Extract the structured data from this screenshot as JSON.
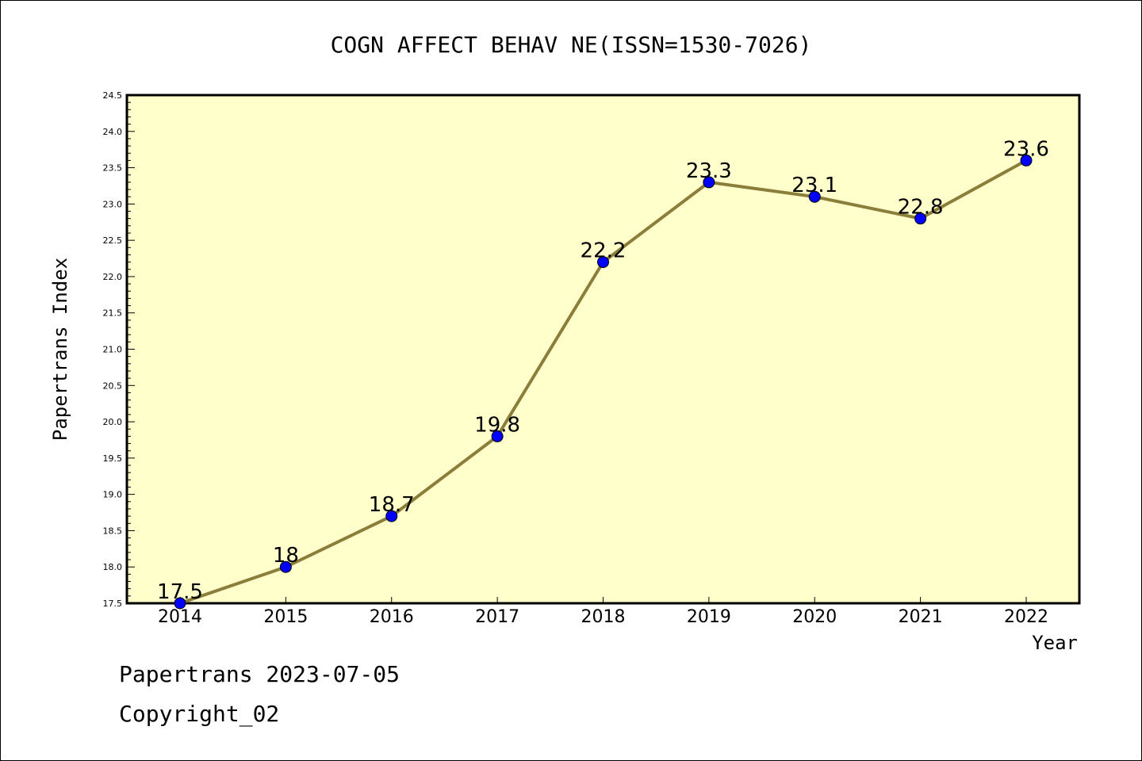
{
  "chart_data": {
    "type": "line",
    "title": "COGN AFFECT BEHAV NE(ISSN=1530-7026)",
    "xlabel": "Year",
    "ylabel": "Papertrans Index",
    "categories": [
      "2014",
      "2015",
      "2016",
      "2017",
      "2018",
      "2019",
      "2020",
      "2021",
      "2022"
    ],
    "values": [
      17.5,
      18,
      18.7,
      19.8,
      22.2,
      23.3,
      23.1,
      22.8,
      23.6
    ],
    "data_labels": [
      "17.5",
      "18",
      "18.7",
      "19.8",
      "22.2",
      "23.3",
      "23.1",
      "22.8",
      "23.6"
    ],
    "ylim": [
      17.5,
      24.5
    ],
    "y_ticks": [
      "17.5",
      "18.0",
      "18.5",
      "19.0",
      "19.5",
      "20.0",
      "20.5",
      "21.0",
      "21.5",
      "22.0",
      "22.5",
      "23.0",
      "23.5",
      "24.0",
      "24.5"
    ],
    "grid": false,
    "colors": {
      "plot_background": "#ffffcc",
      "line": "#8b7d3a",
      "marker": "#0000ff"
    }
  },
  "footer": {
    "line1": "Papertrans 2023-07-05",
    "line2": "Copyright_02"
  }
}
